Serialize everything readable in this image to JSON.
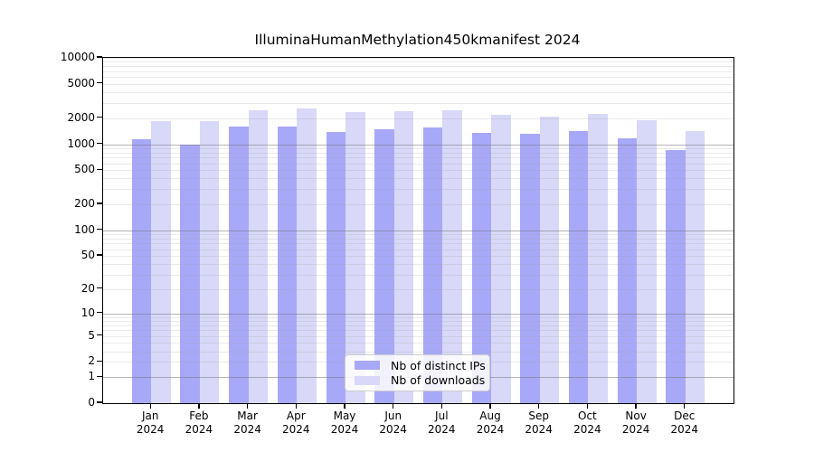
{
  "chart_data": {
    "type": "bar",
    "title": "IlluminaHumanMethylation450kmanifest 2024",
    "year_label": "2024",
    "categories": [
      "Jan",
      "Feb",
      "Mar",
      "Apr",
      "May",
      "Jun",
      "Jul",
      "Aug",
      "Sep",
      "Oct",
      "Nov",
      "Dec"
    ],
    "series": [
      {
        "name": "Nb of distinct IPs",
        "color": "#a8a8f8",
        "values": [
          1150,
          1000,
          1600,
          1600,
          1400,
          1500,
          1560,
          1340,
          1320,
          1410,
          1170,
          850
        ]
      },
      {
        "name": "Nb of downloads",
        "color": "#d8d8f8",
        "values": [
          1860,
          1860,
          2500,
          2620,
          2330,
          2410,
          2450,
          2170,
          2100,
          2260,
          1910,
          1410
        ]
      }
    ],
    "yscale": "log10(value+1)",
    "yticks": [
      0,
      1,
      2,
      5,
      10,
      20,
      50,
      100,
      200,
      500,
      1000,
      2000,
      5000,
      10000
    ],
    "ylim": [
      0,
      10000
    ],
    "xlabel": "",
    "ylabel": "",
    "grid": "horizontal log minor+major",
    "legend_position": "inside-bottom-center"
  }
}
